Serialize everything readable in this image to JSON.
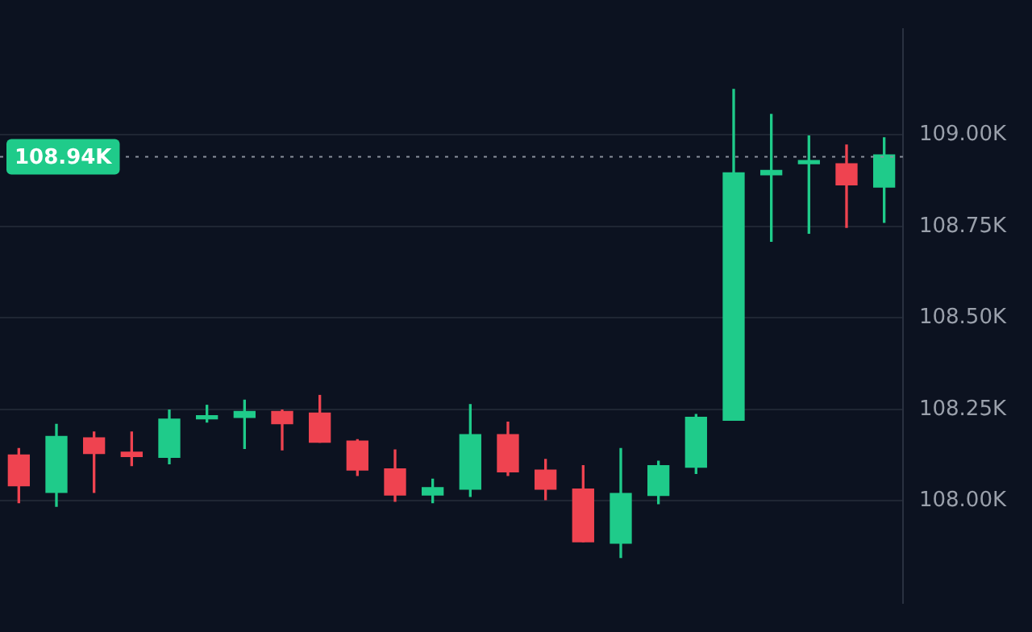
{
  "chart_data": {
    "type": "candlestick",
    "categories": [
      null,
      null,
      null,
      null,
      null,
      null,
      null,
      null,
      null,
      null,
      null,
      null,
      null,
      null,
      null,
      null,
      null,
      null,
      null,
      null,
      null,
      null,
      null,
      null
    ],
    "ohlc": [
      [
        108.125,
        108.143,
        107.995,
        108.041
      ],
      [
        108.023,
        108.209,
        107.985,
        108.176
      ],
      [
        108.172,
        108.188,
        108.023,
        108.129
      ],
      [
        108.133,
        108.188,
        108.096,
        108.121
      ],
      [
        108.119,
        108.248,
        108.101,
        108.223
      ],
      [
        108.224,
        108.261,
        108.215,
        108.232
      ],
      [
        108.228,
        108.275,
        108.143,
        108.244
      ],
      [
        108.244,
        108.248,
        108.139,
        108.211
      ],
      [
        108.24,
        108.288,
        108.16,
        108.16
      ],
      [
        108.163,
        108.167,
        108.069,
        108.084
      ],
      [
        108.087,
        108.139,
        107.999,
        108.016
      ],
      [
        108.016,
        108.059,
        107.995,
        108.036
      ],
      [
        108.032,
        108.263,
        108.012,
        108.181
      ],
      [
        108.181,
        108.215,
        108.069,
        108.079
      ],
      [
        108.084,
        108.113,
        108.003,
        108.032
      ],
      [
        108.032,
        108.096,
        107.888,
        107.888
      ],
      [
        107.884,
        108.143,
        107.845,
        108.02
      ],
      [
        108.015,
        108.108,
        107.992,
        108.096
      ],
      [
        108.092,
        108.236,
        108.075,
        108.228
      ],
      [
        108.22,
        109.124,
        108.22,
        108.896
      ],
      [
        108.891,
        109.056,
        108.709,
        108.903
      ],
      [
        108.921,
        108.997,
        108.731,
        108.927
      ],
      [
        108.921,
        108.972,
        108.747,
        108.863
      ],
      [
        108.857,
        108.992,
        108.761,
        108.945
      ]
    ],
    "colors": [
      "#ef4350",
      "#1fcb8a",
      "#ef4350",
      "#ef4350",
      "#1fcb8a",
      "#1fcb8a",
      "#1fcb8a",
      "#ef4350",
      "#ef4350",
      "#ef4350",
      "#ef4350",
      "#1fcb8a",
      "#1fcb8a",
      "#ef4350",
      "#ef4350",
      "#ef4350",
      "#1fcb8a",
      "#1fcb8a",
      "#1fcb8a",
      "#1fcb8a",
      "#1fcb8a",
      "#1fcb8a",
      "#ef4350",
      "#1fcb8a"
    ],
    "ylim": [
      107.72,
      109.29
    ],
    "yticks": [
      {
        "value": 108,
        "label": "108.00K"
      },
      {
        "value": 108.25,
        "label": "108.25K"
      },
      {
        "value": 108.5,
        "label": "108.50K"
      },
      {
        "value": 108.75,
        "label": "108.75K"
      },
      {
        "value": 109,
        "label": "109.00K"
      }
    ],
    "grid": "y",
    "legend": false,
    "ref_lines": [
      {
        "axis": "y",
        "value": 108.94,
        "label": "108.94K",
        "color": "#8a909c",
        "line_style": "dotted"
      }
    ]
  }
}
